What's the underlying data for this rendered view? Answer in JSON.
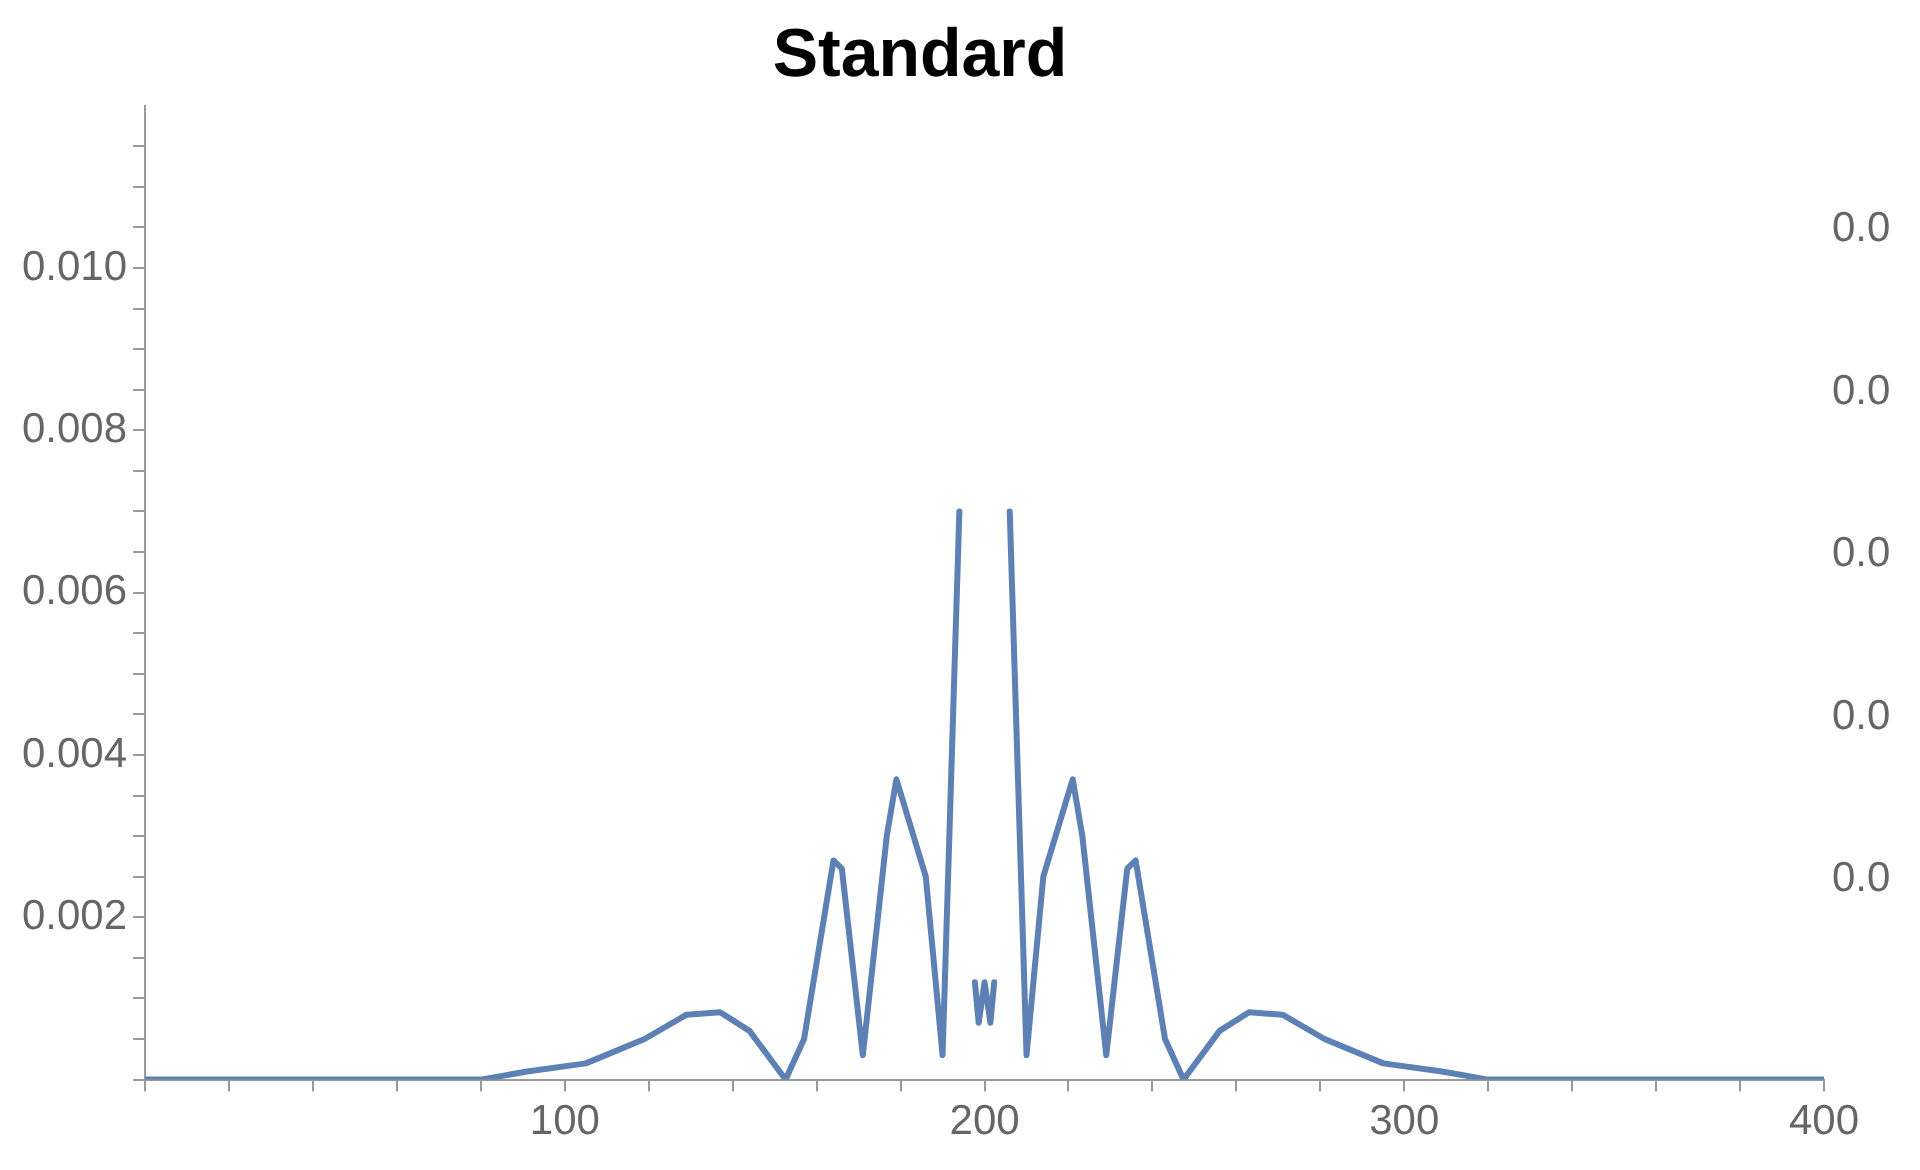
{
  "chart_data": {
    "type": "line",
    "title": "Standard",
    "color": "#5e81b5",
    "legend": false,
    "grid": false,
    "marker": "none",
    "line_style": "solid",
    "x": [
      0,
      40,
      80,
      91,
      105,
      119,
      129,
      137,
      144,
      152.6,
      157,
      164,
      166,
      171,
      176.7,
      179,
      186,
      190,
      194,
      195.3,
      197.7,
      198.6,
      200,
      201.4,
      202.3,
      204.7,
      206,
      210,
      214,
      221,
      223.3,
      229,
      234,
      236,
      243,
      247.4,
      256,
      263,
      271,
      281,
      295,
      309,
      320,
      360,
      400
    ],
    "values": [
      0,
      0,
      0,
      0.0001,
      0.0002,
      0.0005,
      0.0008,
      0.00083,
      0.0006,
      0,
      0.0005,
      0.0027,
      0.0026,
      0.0003,
      0.003,
      0.0037,
      0.0025,
      0.0003,
      0.007,
      null,
      0.0012,
      0.0007,
      0.0012,
      0.0007,
      0.0012,
      null,
      0.007,
      0.0003,
      0.0025,
      0.0037,
      0.003,
      0.0003,
      0.0026,
      0.0027,
      0.0005,
      0,
      0.0006,
      0.00083,
      0.0008,
      0.0005,
      0.0002,
      0.0001,
      0,
      0,
      0
    ],
    "xlim": [
      0,
      400
    ],
    "ylim": [
      0,
      0.012
    ],
    "xticks": [
      {
        "value": 0,
        "label": null
      },
      {
        "value": 20,
        "label": null
      },
      {
        "value": 40,
        "label": null
      },
      {
        "value": 60,
        "label": null
      },
      {
        "value": 80,
        "label": null
      },
      100,
      {
        "value": 120,
        "label": null
      },
      {
        "value": 140,
        "label": null
      },
      {
        "value": 160,
        "label": null
      },
      {
        "value": 180,
        "label": null
      },
      200,
      {
        "value": 220,
        "label": null
      },
      {
        "value": 240,
        "label": null
      },
      {
        "value": 260,
        "label": null
      },
      {
        "value": 280,
        "label": null
      },
      300,
      {
        "value": 320,
        "label": null
      },
      {
        "value": 340,
        "label": null
      },
      {
        "value": 360,
        "label": null
      },
      {
        "value": 380,
        "label": null
      },
      400
    ],
    "yticks": [
      {
        "value": 0,
        "label": null
      },
      {
        "value": 0.0005,
        "label": null
      },
      {
        "value": 0.001,
        "label": null
      },
      {
        "value": 0.0015,
        "label": null
      },
      0.002,
      {
        "value": 0.0025,
        "label": null
      },
      {
        "value": 0.003,
        "label": null
      },
      {
        "value": 0.0035,
        "label": null
      },
      0.004,
      {
        "value": 0.0045,
        "label": null
      },
      {
        "value": 0.005,
        "label": null
      },
      {
        "value": 0.0055,
        "label": null
      },
      0.006,
      {
        "value": 0.0065,
        "label": null
      },
      {
        "value": 0.007,
        "label": null
      },
      {
        "value": 0.0075,
        "label": null
      },
      0.008,
      {
        "value": 0.0085,
        "label": null
      },
      {
        "value": 0.009,
        "label": null
      },
      {
        "value": 0.0095,
        "label": null
      },
      {
        "value": 0.01,
        "label": "0.010"
      },
      {
        "value": 0.0105,
        "label": null
      },
      {
        "value": 0.011,
        "label": null
      },
      {
        "value": 0.0115,
        "label": null
      }
    ],
    "annotations": [
      "0.0",
      "0.0",
      "0.0",
      "0.0",
      "0.0"
    ]
  }
}
